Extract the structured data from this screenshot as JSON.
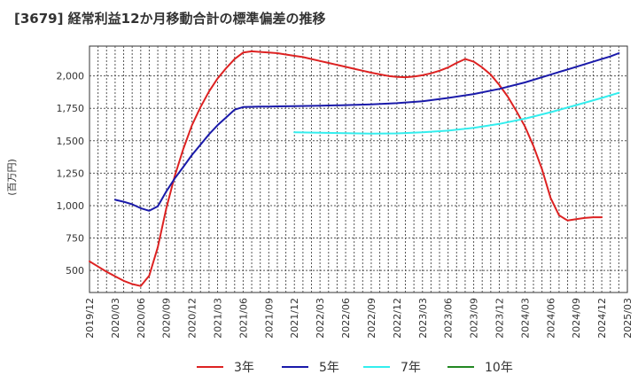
{
  "chart_data": {
    "type": "line",
    "title": "[3679]  経常利益12か月移動合計の標準偏差の推移",
    "ylabel": "(百万円)",
    "xlabel": "",
    "ylim": [
      330,
      2230
    ],
    "yticks": [
      500,
      750,
      1000,
      1250,
      1500,
      1750,
      2000
    ],
    "ytick_labels": [
      "500",
      "750",
      "1,000",
      "1,250",
      "1,500",
      "1,750",
      "2,000"
    ],
    "xticks": [
      "2019/12",
      "2020/03",
      "2020/06",
      "2020/09",
      "2020/12",
      "2021/03",
      "2021/06",
      "2021/09",
      "2021/12",
      "2022/03",
      "2022/06",
      "2022/09",
      "2022/12",
      "2023/03",
      "2023/06",
      "2023/09",
      "2023/12",
      "2024/03",
      "2024/06",
      "2024/09",
      "2024/12",
      "2025/03"
    ],
    "grid": true,
    "legend_position": "bottom",
    "series": [
      {
        "name": "3年",
        "color": "#dd2222",
        "points": [
          [
            "2019/12",
            570
          ],
          [
            "2020/01",
            530
          ],
          [
            "2020/02",
            490
          ],
          [
            "2020/03",
            455
          ],
          [
            "2020/04",
            420
          ],
          [
            "2020/05",
            395
          ],
          [
            "2020/06",
            380
          ],
          [
            "2020/07",
            460
          ],
          [
            "2020/08",
            680
          ],
          [
            "2020/09",
            980
          ],
          [
            "2020/10",
            1230
          ],
          [
            "2020/11",
            1440
          ],
          [
            "2020/12",
            1620
          ],
          [
            "2021/01",
            1760
          ],
          [
            "2021/02",
            1880
          ],
          [
            "2021/03",
            1980
          ],
          [
            "2021/04",
            2060
          ],
          [
            "2021/05",
            2130
          ],
          [
            "2021/06",
            2180
          ],
          [
            "2021/07",
            2190
          ],
          [
            "2021/08",
            2185
          ],
          [
            "2021/09",
            2180
          ],
          [
            "2021/10",
            2175
          ],
          [
            "2021/11",
            2165
          ],
          [
            "2021/12",
            2155
          ],
          [
            "2022/01",
            2145
          ],
          [
            "2022/02",
            2130
          ],
          [
            "2022/03",
            2115
          ],
          [
            "2022/04",
            2100
          ],
          [
            "2022/05",
            2085
          ],
          [
            "2022/06",
            2070
          ],
          [
            "2022/07",
            2055
          ],
          [
            "2022/08",
            2040
          ],
          [
            "2022/09",
            2025
          ],
          [
            "2022/10",
            2012
          ],
          [
            "2022/11",
            2000
          ],
          [
            "2022/12",
            1992
          ],
          [
            "2023/01",
            1990
          ],
          [
            "2023/02",
            1995
          ],
          [
            "2023/03",
            2005
          ],
          [
            "2023/04",
            2020
          ],
          [
            "2023/05",
            2040
          ],
          [
            "2023/06",
            2065
          ],
          [
            "2023/07",
            2100
          ],
          [
            "2023/08",
            2130
          ],
          [
            "2023/09",
            2110
          ],
          [
            "2023/10",
            2065
          ],
          [
            "2023/11",
            2010
          ],
          [
            "2023/12",
            1930
          ],
          [
            "2024/01",
            1840
          ],
          [
            "2024/02",
            1730
          ],
          [
            "2024/03",
            1610
          ],
          [
            "2024/04",
            1460
          ],
          [
            "2024/05",
            1280
          ],
          [
            "2024/06",
            1060
          ],
          [
            "2024/07",
            925
          ],
          [
            "2024/08",
            885
          ],
          [
            "2024/09",
            895
          ],
          [
            "2024/10",
            905
          ],
          [
            "2024/11",
            910
          ],
          [
            "2024/12",
            910
          ]
        ]
      },
      {
        "name": "5年",
        "color": "#1a1aaa",
        "points": [
          [
            "2020/03",
            1045
          ],
          [
            "2020/04",
            1030
          ],
          [
            "2020/05",
            1010
          ],
          [
            "2020/06",
            980
          ],
          [
            "2020/07",
            960
          ],
          [
            "2020/08",
            995
          ],
          [
            "2020/09",
            1110
          ],
          [
            "2020/10",
            1210
          ],
          [
            "2020/11",
            1300
          ],
          [
            "2020/12",
            1390
          ],
          [
            "2021/01",
            1470
          ],
          [
            "2021/02",
            1550
          ],
          [
            "2021/03",
            1620
          ],
          [
            "2021/04",
            1680
          ],
          [
            "2021/05",
            1740
          ],
          [
            "2021/06",
            1760
          ],
          [
            "2021/07",
            1762
          ],
          [
            "2021/08",
            1763
          ],
          [
            "2021/09",
            1764
          ],
          [
            "2021/10",
            1765
          ],
          [
            "2021/11",
            1766
          ],
          [
            "2021/12",
            1767
          ],
          [
            "2022/03",
            1770
          ],
          [
            "2022/06",
            1775
          ],
          [
            "2022/09",
            1780
          ],
          [
            "2022/12",
            1790
          ],
          [
            "2023/03",
            1805
          ],
          [
            "2023/06",
            1830
          ],
          [
            "2023/09",
            1860
          ],
          [
            "2023/12",
            1900
          ],
          [
            "2024/03",
            1950
          ],
          [
            "2024/06",
            2010
          ],
          [
            "2024/09",
            2070
          ],
          [
            "2024/12",
            2130
          ],
          [
            "2025/01",
            2150
          ],
          [
            "2025/02",
            2175
          ]
        ]
      },
      {
        "name": "7年",
        "color": "#33eeee",
        "points": [
          [
            "2021/12",
            1565
          ],
          [
            "2022/03",
            1562
          ],
          [
            "2022/06",
            1558
          ],
          [
            "2022/09",
            1555
          ],
          [
            "2022/12",
            1557
          ],
          [
            "2023/03",
            1565
          ],
          [
            "2023/06",
            1578
          ],
          [
            "2023/09",
            1600
          ],
          [
            "2023/12",
            1630
          ],
          [
            "2024/03",
            1670
          ],
          [
            "2024/06",
            1720
          ],
          [
            "2024/09",
            1775
          ],
          [
            "2024/12",
            1830
          ],
          [
            "2025/02",
            1870
          ]
        ]
      },
      {
        "name": "10年",
        "color": "#228822",
        "points": []
      }
    ]
  }
}
